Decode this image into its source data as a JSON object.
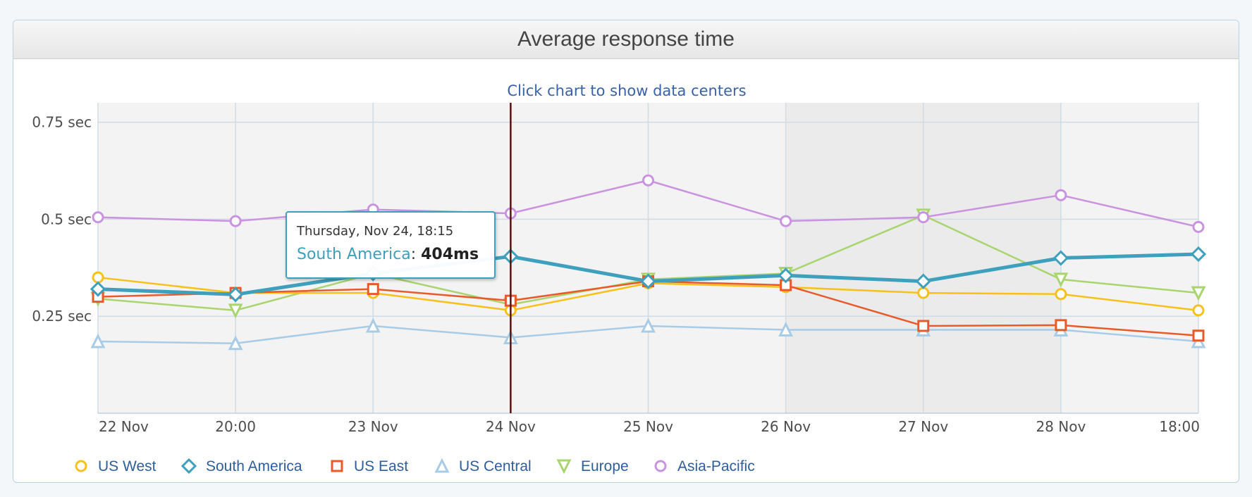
{
  "panel": {
    "title": "Average response time"
  },
  "chart_data": {
    "type": "line",
    "title": "Average response time",
    "subtitle": "Click chart to show data centers",
    "ylim": [
      0,
      0.8
    ],
    "y_ticks": [
      {
        "value": 0.25,
        "label": "0.25 sec"
      },
      {
        "value": 0.5,
        "label": "0.5 sec"
      },
      {
        "value": 0.75,
        "label": "0.75 sec"
      }
    ],
    "x_range": [
      0,
      8
    ],
    "x_ticks": [
      {
        "x": 0,
        "label": "22 Nov"
      },
      {
        "x": 1,
        "label": "20:00"
      },
      {
        "x": 2,
        "label": "23 Nov"
      },
      {
        "x": 3,
        "label": "24 Nov"
      },
      {
        "x": 4,
        "label": "25 Nov"
      },
      {
        "x": 5,
        "label": "26 Nov"
      },
      {
        "x": 6,
        "label": "27 Nov"
      },
      {
        "x": 7,
        "label": "28 Nov"
      },
      {
        "x": 8,
        "label": "18:00"
      }
    ],
    "grid": true,
    "legend": "bottom-left",
    "crosshair_x": 3,
    "highlighted_series": "South America",
    "series": [
      {
        "name": "US West",
        "color": "#f7c11a",
        "marker": "circle",
        "values": [
          0.35,
          0.31,
          0.31,
          0.265,
          0.335,
          0.325,
          0.31,
          0.307,
          0.265
        ]
      },
      {
        "name": "South America",
        "color": "#3ea0bc",
        "marker": "diamond",
        "values": [
          0.32,
          0.306,
          0.36,
          0.404,
          0.34,
          0.355,
          0.34,
          0.4,
          0.41
        ]
      },
      {
        "name": "US East",
        "color": "#e95a2a",
        "marker": "square",
        "values": [
          0.3,
          0.31,
          0.32,
          0.29,
          0.34,
          0.33,
          0.225,
          0.227,
          0.2
        ]
      },
      {
        "name": "US Central",
        "color": "#a8cbe6",
        "marker": "triangle",
        "values": [
          0.185,
          0.18,
          0.225,
          0.195,
          0.225,
          0.215,
          0.215,
          0.215,
          0.185
        ]
      },
      {
        "name": "Europe",
        "color": "#a9d46e",
        "marker": "triangle-down",
        "values": [
          0.295,
          0.265,
          0.36,
          0.28,
          0.345,
          0.36,
          0.51,
          0.345,
          0.31
        ]
      },
      {
        "name": "Asia-Pacific",
        "color": "#c993df",
        "marker": "circle",
        "values": [
          0.505,
          0.495,
          0.525,
          0.515,
          0.6,
          0.495,
          0.505,
          0.562,
          0.48
        ]
      }
    ]
  },
  "tooltip": {
    "time": "Thursday, Nov 24, 18:15",
    "series": "South America",
    "colon": ":",
    "value": "404ms"
  }
}
